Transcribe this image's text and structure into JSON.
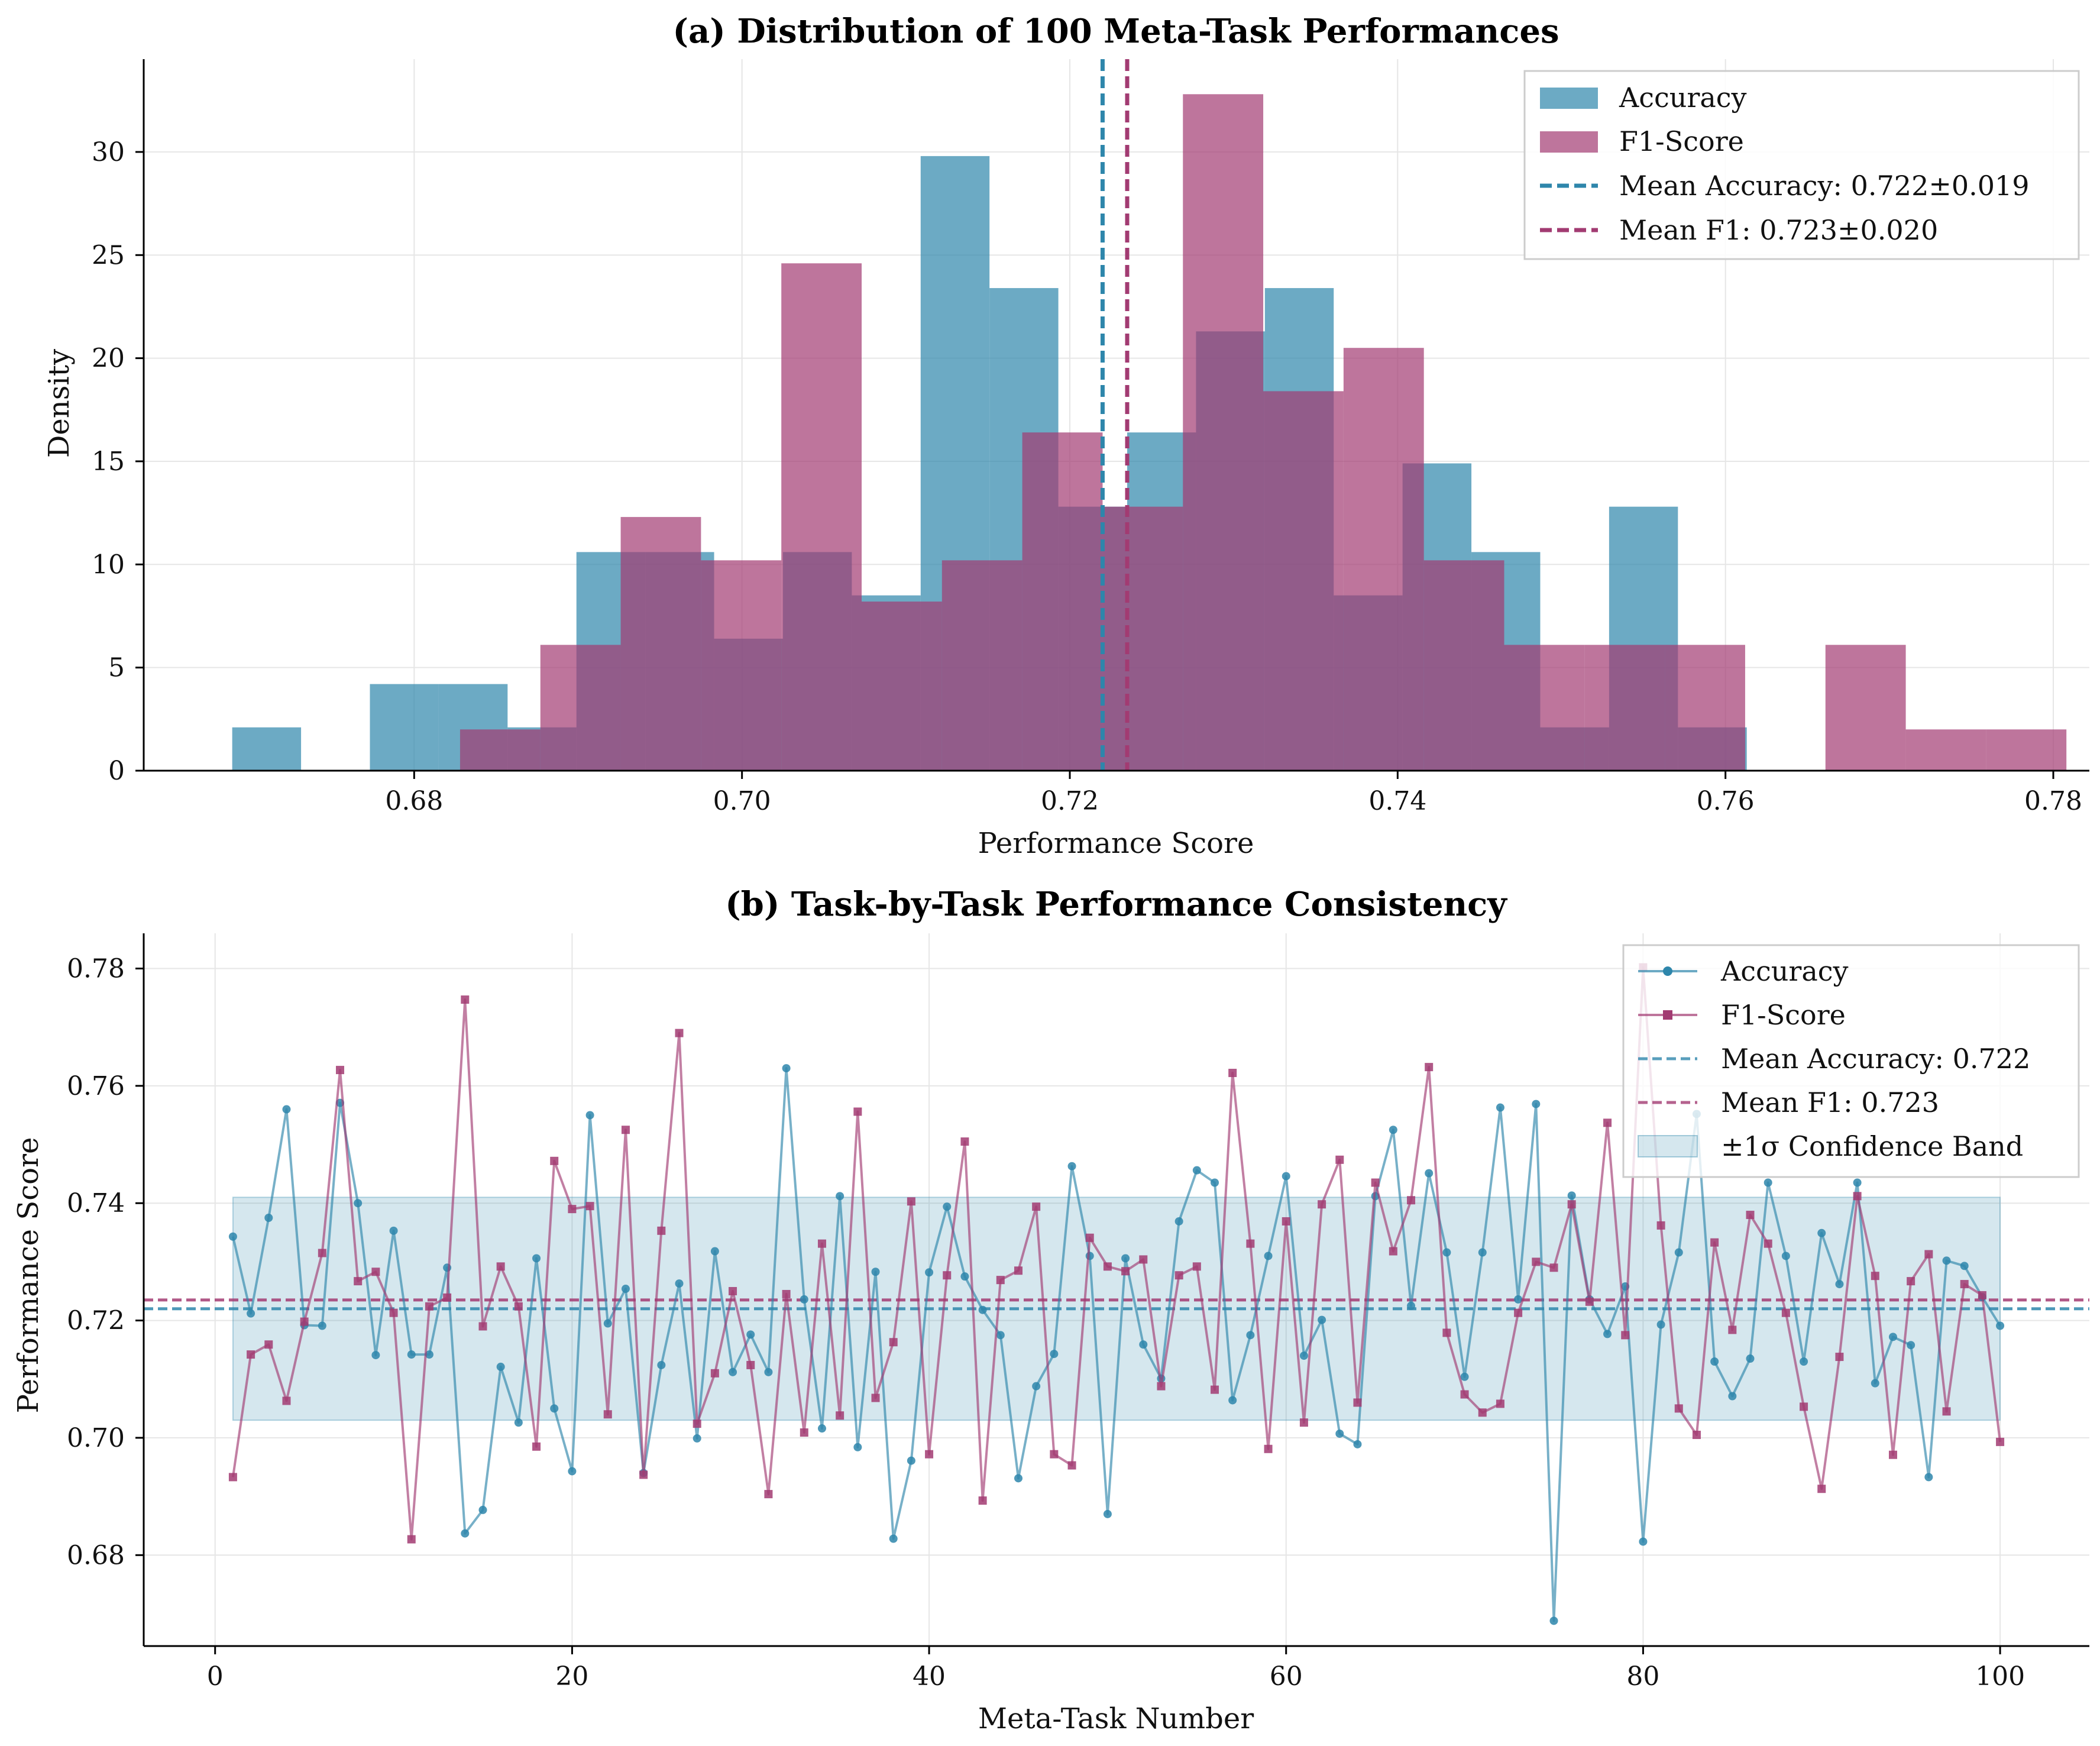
{
  "colors": {
    "accuracy": "#2E86AB",
    "f1": "#A23B72",
    "band": "#2E86AB",
    "grid": "#e6e6e6"
  },
  "chart_data": [
    {
      "type": "histogram",
      "title": "(a) Distribution of 100 Meta-Task Performances",
      "xlabel": "Performance Score",
      "ylabel": "Density",
      "xlim": [
        0.6635,
        0.7822
      ],
      "ylim": [
        0,
        34.5
      ],
      "xticks": [
        0.68,
        0.7,
        0.72,
        0.74,
        0.76,
        0.78
      ],
      "xtick_labels": [
        "0.68",
        "0.70",
        "0.72",
        "0.74",
        "0.76",
        "0.78"
      ],
      "yticks": [
        0,
        5,
        10,
        15,
        20,
        25,
        30
      ],
      "ytick_labels": [
        "0",
        "5",
        "10",
        "15",
        "20",
        "25",
        "30"
      ],
      "grid": true,
      "legend_position": "top-right",
      "series": [
        {
          "name": "Accuracy",
          "bin_edges": [
            0.6689,
            0.6731,
            0.6773,
            0.6815,
            0.6857,
            0.6899,
            0.6941,
            0.6983,
            0.7025,
            0.7067,
            0.7109,
            0.7151,
            0.7193,
            0.7235,
            0.7277,
            0.7319,
            0.7361,
            0.7403,
            0.7445,
            0.7487,
            0.7529,
            0.7571,
            0.7613
          ],
          "density": [
            2.1,
            0,
            4.2,
            4.2,
            2.1,
            10.6,
            10.6,
            6.4,
            10.6,
            8.5,
            29.8,
            23.4,
            12.8,
            16.4,
            21.3,
            23.4,
            8.5,
            14.9,
            10.6,
            2.1,
            12.8,
            2.1
          ]
        },
        {
          "name": "F1-Score",
          "bin_edges": [
            0.6828,
            0.6877,
            0.6926,
            0.6975,
            0.7024,
            0.7073,
            0.7122,
            0.7171,
            0.722,
            0.7269,
            0.7318,
            0.7367,
            0.7416,
            0.7465,
            0.7514,
            0.7563,
            0.7612,
            0.7661,
            0.771,
            0.7759,
            0.7808
          ],
          "density": [
            2.0,
            6.1,
            12.3,
            10.2,
            24.6,
            8.2,
            10.2,
            16.4,
            12.8,
            32.8,
            18.4,
            20.5,
            10.2,
            6.1,
            6.1,
            6.1,
            0,
            6.1,
            2.0,
            2.0
          ]
        }
      ],
      "mean_lines": [
        {
          "name": "Mean Accuracy: 0.722±0.019",
          "x": 0.722,
          "series": "accuracy"
        },
        {
          "name": "Mean F1: 0.723±0.020",
          "x": 0.7235,
          "series": "f1"
        }
      ]
    },
    {
      "type": "line",
      "title": "(b) Task-by-Task Performance Consistency",
      "xlabel": "Meta-Task Number",
      "ylabel": "Performance Score",
      "xlim": [
        -4,
        105
      ],
      "ylim": [
        0.6645,
        0.786
      ],
      "xticks": [
        0,
        20,
        40,
        60,
        80,
        100
      ],
      "xtick_labels": [
        "0",
        "20",
        "40",
        "60",
        "80",
        "100"
      ],
      "yticks": [
        0.68,
        0.7,
        0.72,
        0.74,
        0.76,
        0.78
      ],
      "ytick_labels": [
        "0.68",
        "0.70",
        "0.72",
        "0.74",
        "0.76",
        "0.78"
      ],
      "grid": true,
      "legend_position": "top-right",
      "x": [
        1,
        2,
        3,
        4,
        5,
        6,
        7,
        8,
        9,
        10,
        11,
        12,
        13,
        14,
        15,
        16,
        17,
        18,
        19,
        20,
        21,
        22,
        23,
        24,
        25,
        26,
        27,
        28,
        29,
        30,
        31,
        32,
        33,
        34,
        35,
        36,
        37,
        38,
        39,
        40,
        41,
        42,
        43,
        44,
        45,
        46,
        47,
        48,
        49,
        50,
        51,
        52,
        53,
        54,
        55,
        56,
        57,
        58,
        59,
        60,
        61,
        62,
        63,
        64,
        65,
        66,
        67,
        68,
        69,
        70,
        71,
        72,
        73,
        74,
        75,
        76,
        77,
        78,
        79,
        80,
        81,
        82,
        83,
        84,
        85,
        86,
        87,
        88,
        89,
        90,
        91,
        92,
        93,
        94,
        95,
        96,
        97,
        98,
        99,
        100
      ],
      "series": [
        {
          "name": "Accuracy",
          "values": [
            0.7343,
            0.7212,
            0.7375,
            0.756,
            0.7192,
            0.7191,
            0.7571,
            0.74,
            0.7141,
            0.7353,
            0.7142,
            0.7142,
            0.729,
            0.6837,
            0.6877,
            0.7121,
            0.7026,
            0.7306,
            0.705,
            0.6943,
            0.755,
            0.7195,
            0.7254,
            0.694,
            0.7124,
            0.7263,
            0.6999,
            0.7318,
            0.7112,
            0.7176,
            0.7112,
            0.763,
            0.7236,
            0.7016,
            0.7412,
            0.6984,
            0.7283,
            0.6828,
            0.6961,
            0.7282,
            0.7394,
            0.7275,
            0.7218,
            0.7175,
            0.6931,
            0.7088,
            0.7143,
            0.7463,
            0.731,
            0.687,
            0.7306,
            0.7159,
            0.7101,
            0.7369,
            0.7456,
            0.7435,
            0.7064,
            0.7175,
            0.731,
            0.7446,
            0.714,
            0.7201,
            0.7007,
            0.6989,
            0.7412,
            0.7525,
            0.7225,
            0.7451,
            0.7316,
            0.7104,
            0.7316,
            0.7563,
            0.7236,
            0.7569,
            0.6688,
            0.7413,
            0.7236,
            0.7177,
            0.7258,
            0.6823,
            0.7193,
            0.7316,
            0.7552,
            0.713,
            0.7071,
            0.7135,
            0.7435,
            0.731,
            0.713,
            0.7349,
            0.7262,
            0.7435,
            0.7093,
            0.7172,
            0.7158,
            0.6933,
            0.7302,
            0.7293,
            0.724,
            0.7191
          ]
        },
        {
          "name": "F1-Score",
          "values": [
            0.6933,
            0.7142,
            0.7159,
            0.7063,
            0.7198,
            0.7315,
            0.7627,
            0.7267,
            0.7283,
            0.7213,
            0.6827,
            0.7224,
            0.7239,
            0.7747,
            0.719,
            0.7292,
            0.7224,
            0.6985,
            0.7472,
            0.739,
            0.7395,
            0.704,
            0.7525,
            0.6937,
            0.7353,
            0.769,
            0.7024,
            0.711,
            0.725,
            0.7124,
            0.6904,
            0.7245,
            0.7009,
            0.7331,
            0.7038,
            0.7556,
            0.7068,
            0.7163,
            0.7403,
            0.6972,
            0.7277,
            0.7505,
            0.6893,
            0.7269,
            0.7285,
            0.7394,
            0.6972,
            0.6953,
            0.7341,
            0.7292,
            0.7284,
            0.7304,
            0.7088,
            0.7277,
            0.7292,
            0.7082,
            0.7622,
            0.7331,
            0.6981,
            0.7369,
            0.7026,
            0.7398,
            0.7474,
            0.706,
            0.7435,
            0.7318,
            0.7405,
            0.7632,
            0.7179,
            0.7074,
            0.7043,
            0.7058,
            0.7213,
            0.73,
            0.729,
            0.7398,
            0.7232,
            0.7537,
            0.7175,
            0.7802,
            0.7362,
            0.705,
            0.7005,
            0.7333,
            0.7184,
            0.738,
            0.7331,
            0.7213,
            0.7053,
            0.6913,
            0.7138,
            0.7412,
            0.7276,
            0.6971,
            0.7267,
            0.7313,
            0.7045,
            0.7262,
            0.7243,
            0.6993
          ]
        }
      ],
      "mean_lines": [
        {
          "name": "Mean Accuracy: 0.722",
          "y": 0.722,
          "series": "accuracy"
        },
        {
          "name": "Mean F1: 0.723",
          "y": 0.7235,
          "series": "f1"
        }
      ],
      "band": {
        "name": "±1σ Confidence Band",
        "y_low": 0.703,
        "y_high": 0.741
      }
    }
  ]
}
